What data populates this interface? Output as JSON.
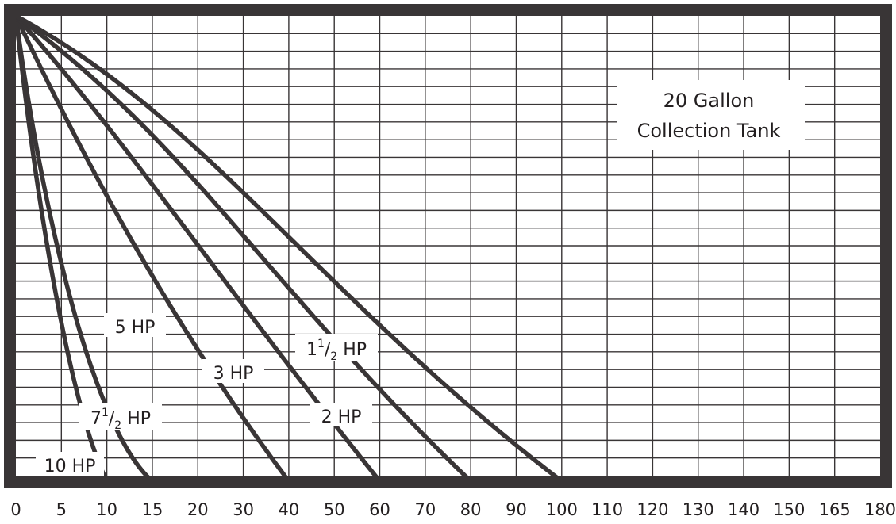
{
  "chart_data": {
    "type": "line",
    "title": "",
    "xlabel": "",
    "ylabel": "",
    "x_ticks": [
      "0",
      "5",
      "10",
      "15",
      "20",
      "30",
      "40",
      "50",
      "60",
      "70",
      "80",
      "90",
      "100",
      "110",
      "120",
      "130",
      "140",
      "150",
      "165",
      "180"
    ],
    "grid": true,
    "annotation": [
      "20 Gallon",
      "Collection Tank"
    ],
    "series": [
      {
        "name": "10 HP",
        "label_main": "10 HP",
        "label_sup": "",
        "label_sub": "",
        "label_tail": "",
        "end_x": "10",
        "color": "#393536"
      },
      {
        "name": "7 1/2 HP",
        "label_main": "7",
        "label_sup": "1",
        "label_sub": "2",
        "label_tail": " HP",
        "end_x": "15",
        "color": "#393536"
      },
      {
        "name": "5 HP",
        "label_main": "5 HP",
        "label_sup": "",
        "label_sub": "",
        "label_tail": "",
        "end_x": "40",
        "color": "#393536"
      },
      {
        "name": "3 HP",
        "label_main": "3 HP",
        "label_sup": "",
        "label_sub": "",
        "label_tail": "",
        "end_x": "60",
        "color": "#393536"
      },
      {
        "name": "2 HP",
        "label_main": "2 HP",
        "label_sup": "",
        "label_sub": "",
        "label_tail": "",
        "end_x": "80",
        "color": "#393536"
      },
      {
        "name": "1 1/2 HP",
        "label_main": "1",
        "label_sup": "1",
        "label_sub": "2",
        "label_tail": " HP",
        "end_x": "100",
        "color": "#393536"
      }
    ],
    "frame_color": "#393536",
    "grid_color": "#393536"
  }
}
